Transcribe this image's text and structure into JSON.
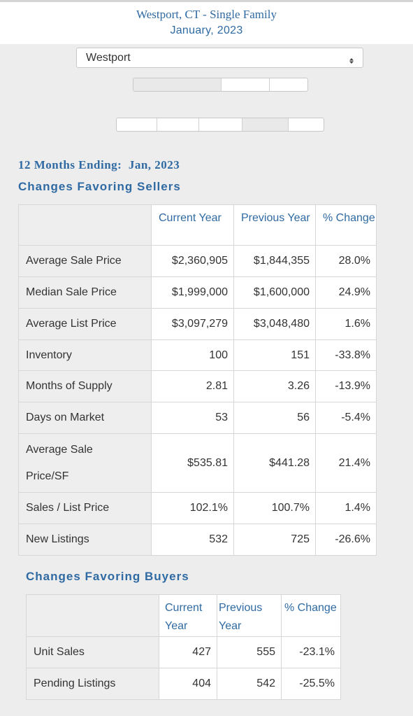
{
  "header": {
    "location": "Westport, CT - Single Family",
    "period": "January, 2023"
  },
  "town_select": {
    "value": "Westport",
    "arrow_icon": "updown-arrow-icon"
  },
  "period_heading": "12 Months Ending:  Jan, 2023",
  "sellers": {
    "title": "Changes Favoring Sellers",
    "headers": {
      "current": "Current Year",
      "previous": "Previous Year",
      "change": "% Change"
    },
    "rows": [
      {
        "label": "Average Sale Price",
        "current": "$2,360,905",
        "previous": "$1,844,355",
        "change": "28.0%"
      },
      {
        "label": "Median Sale Price",
        "current": "$1,999,000",
        "previous": "$1,600,000",
        "change": "24.9%"
      },
      {
        "label": "Average List Price",
        "current": "$3,097,279",
        "previous": "$3,048,480",
        "change": "1.6%"
      },
      {
        "label": "Inventory",
        "current": "100",
        "previous": "151",
        "change": "-33.8%"
      },
      {
        "label": "Months of Supply",
        "current": "2.81",
        "previous": "3.26",
        "change": "-13.9%"
      },
      {
        "label": "Days on Market",
        "current": "53",
        "previous": "56",
        "change": "-5.4%"
      },
      {
        "label": "Average Sale Price/SF",
        "current": "$535.81",
        "previous": "$441.28",
        "change": "21.4%"
      },
      {
        "label": "Sales / List Price",
        "current": "102.1%",
        "previous": "100.7%",
        "change": "1.4%"
      },
      {
        "label": "New Listings",
        "current": "532",
        "previous": "725",
        "change": "-26.6%"
      }
    ]
  },
  "buyers": {
    "title": "Changes Favoring Buyers",
    "headers": {
      "current": "Current Year",
      "previous": "Previous Year",
      "change": "% Change"
    },
    "rows": [
      {
        "label": "Unit Sales",
        "current": "427",
        "previous": "555",
        "change": "-23.1%"
      },
      {
        "label": "Pending Listings",
        "current": "404",
        "previous": "542",
        "change": "-25.5%"
      }
    ]
  },
  "colors": {
    "accent": "#2f6aa3",
    "background": "#ededed",
    "label_cell": "#eeeeee"
  }
}
